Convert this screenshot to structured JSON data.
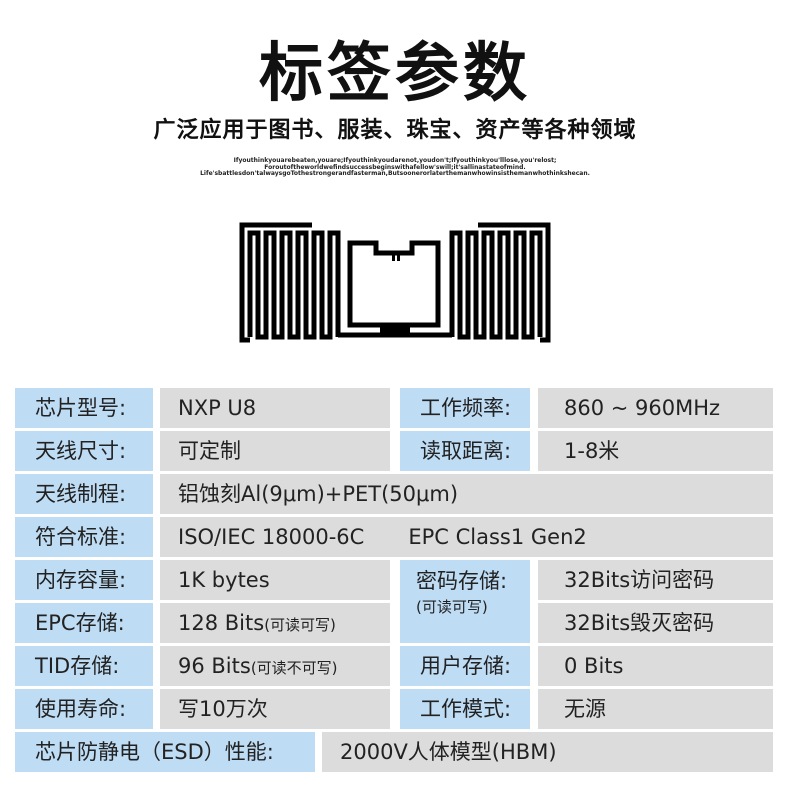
{
  "title": "标签参数",
  "subtitle": "广泛应用于图书、服装、珠宝、资产等各种领域",
  "quote": [
    "Ifyouthinkyouarebeaten,youare;Ifyouthinkyoudarenot,youdon't;Ifyouthinkyou'lllose,you'relost;",
    "Foroutoftheworldwefindsuccessbeginswithafellow'swill;it'sallinastateofmind.",
    "Life'sbattlesdon'talwaysgoTothestrongerandfasterman,Butsoonerorlaterthemanwhowinsisthemanwhothinkshecan."
  ],
  "image": "rfid-antenna-inlay",
  "colors": {
    "label_bg": "#bfdcf5",
    "value_bg": "#dcdcdc"
  },
  "specs": {
    "chip_model": {
      "label": "芯片型号:",
      "value": "NXP U8"
    },
    "frequency": {
      "label": "工作频率:",
      "value": "860 ~ 960MHz"
    },
    "antenna_size": {
      "label": "天线尺寸:",
      "value": "可定制"
    },
    "read_range": {
      "label": "读取距离:",
      "value": "1-8米"
    },
    "antenna_process": {
      "label": "天线制程:",
      "value": "铝蚀刻Al(9μm)+PET(50μm)"
    },
    "standard": {
      "label": "符合标准:",
      "value": "ISO/IEC 18000-6C",
      "value2": "EPC Class1 Gen2"
    },
    "memory": {
      "label": "内存容量:",
      "value": "1K bytes"
    },
    "password": {
      "label": "密码存储:",
      "note": "(可读可写)",
      "value1": "32Bits访问密码",
      "value2": "32Bits毁灭密码"
    },
    "epc": {
      "label": "EPC存储:",
      "value": "128 Bits",
      "note": "(可读可写)"
    },
    "tid": {
      "label": "TID存储:",
      "value": "96 Bits",
      "note": "(可读不可写)"
    },
    "user": {
      "label": "用户存储:",
      "value": "0 Bits"
    },
    "lifetime": {
      "label": "使用寿命:",
      "value": "写10万次"
    },
    "mode": {
      "label": "工作模式:",
      "value": "无源"
    },
    "esd": {
      "label": "芯片防静电（ESD）性能:",
      "value": "2000V人体模型(HBM)"
    }
  }
}
